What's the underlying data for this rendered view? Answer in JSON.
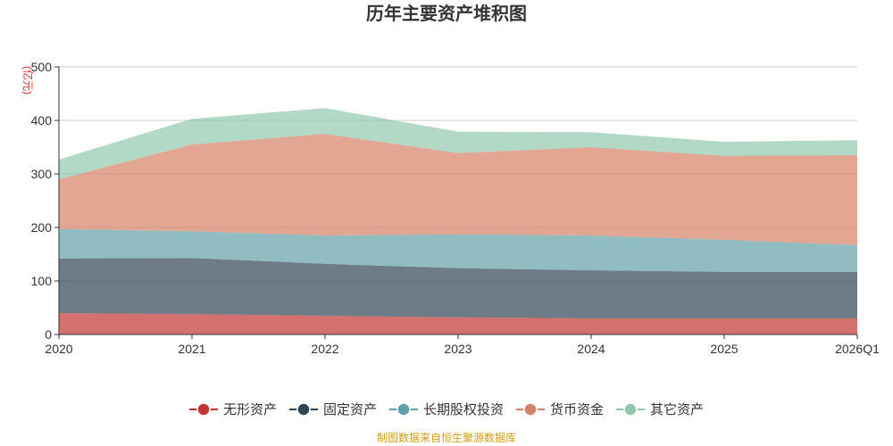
{
  "chart_data": {
    "type": "area",
    "stacked": true,
    "title": "历年主要资产堆积图",
    "unit_label": "(亿元)",
    "categories": [
      "2020",
      "2021",
      "2022",
      "2023",
      "2024",
      "2025",
      "2026Q1"
    ],
    "ylim": [
      0,
      500
    ],
    "yticks": [
      0,
      100,
      200,
      300,
      400,
      500
    ],
    "grid": true,
    "legend_position": "bottom",
    "series": [
      {
        "name": "无形资产",
        "color": "#c23531",
        "values": [
          40,
          38,
          35,
          32,
          30,
          30,
          30
        ]
      },
      {
        "name": "固定资产",
        "color": "#2f4554",
        "values": [
          102,
          105,
          97,
          92,
          90,
          87,
          87
        ]
      },
      {
        "name": "长期股权投资",
        "color": "#61a0a8",
        "values": [
          55,
          50,
          53,
          63,
          65,
          60,
          50
        ]
      },
      {
        "name": "货币资金",
        "color": "#d48265",
        "values": [
          93,
          162,
          190,
          152,
          165,
          157,
          168
        ]
      },
      {
        "name": "其它资产",
        "color": "#91c7ae",
        "values": [
          37,
          48,
          48,
          40,
          28,
          26,
          28
        ]
      }
    ],
    "source": "制图数据来自恒生聚源数据库"
  }
}
